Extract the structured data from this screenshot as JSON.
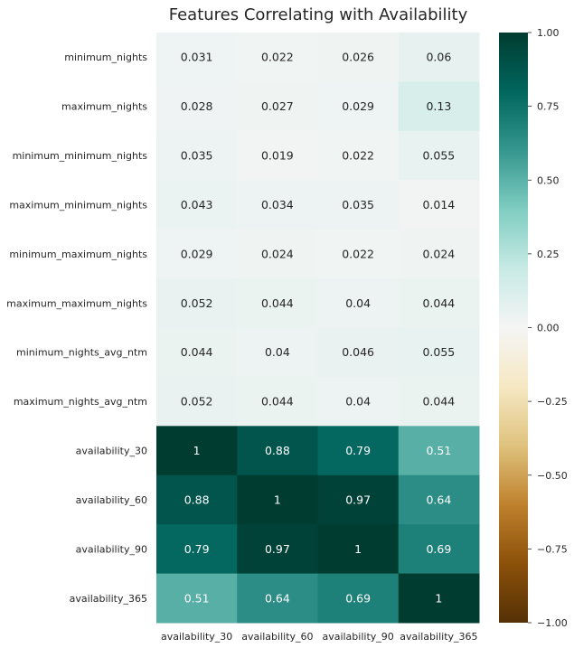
{
  "chart_data": {
    "type": "heatmap",
    "title": "Features Correlating with Availability",
    "rows": [
      "minimum_nights",
      "maximum_nights",
      "minimum_minimum_nights",
      "maximum_minimum_nights",
      "minimum_maximum_nights",
      "maximum_maximum_nights",
      "minimum_nights_avg_ntm",
      "maximum_nights_avg_ntm",
      "availability_30",
      "availability_60",
      "availability_90",
      "availability_365"
    ],
    "columns": [
      "availability_30",
      "availability_60",
      "availability_90",
      "availability_365"
    ],
    "values": [
      [
        0.031,
        0.022,
        0.026,
        0.06
      ],
      [
        0.028,
        0.027,
        0.029,
        0.13
      ],
      [
        0.035,
        0.019,
        0.022,
        0.055
      ],
      [
        0.043,
        0.034,
        0.035,
        0.014
      ],
      [
        0.029,
        0.024,
        0.022,
        0.024
      ],
      [
        0.052,
        0.044,
        0.04,
        0.044
      ],
      [
        0.044,
        0.04,
        0.046,
        0.055
      ],
      [
        0.052,
        0.044,
        0.04,
        0.044
      ],
      [
        1,
        0.88,
        0.79,
        0.51
      ],
      [
        0.88,
        1,
        0.97,
        0.64
      ],
      [
        0.79,
        0.97,
        1,
        0.69
      ],
      [
        0.51,
        0.64,
        0.69,
        1
      ]
    ],
    "annotations": [
      [
        "0.031",
        "0.022",
        "0.026",
        "0.06"
      ],
      [
        "0.028",
        "0.027",
        "0.029",
        "0.13"
      ],
      [
        "0.035",
        "0.019",
        "0.022",
        "0.055"
      ],
      [
        "0.043",
        "0.034",
        "0.035",
        "0.014"
      ],
      [
        "0.029",
        "0.024",
        "0.022",
        "0.024"
      ],
      [
        "0.052",
        "0.044",
        "0.04",
        "0.044"
      ],
      [
        "0.044",
        "0.04",
        "0.046",
        "0.055"
      ],
      [
        "0.052",
        "0.044",
        "0.04",
        "0.044"
      ],
      [
        "1",
        "0.88",
        "0.79",
        "0.51"
      ],
      [
        "0.88",
        "1",
        "0.97",
        "0.64"
      ],
      [
        "0.79",
        "0.97",
        "1",
        "0.69"
      ],
      [
        "0.51",
        "0.64",
        "0.69",
        "1"
      ]
    ],
    "colorbar": {
      "colormap": "BrBG",
      "vmin": -1,
      "vmax": 1,
      "ticks": [
        1.0,
        0.75,
        0.5,
        0.25,
        0.0,
        -0.25,
        -0.5,
        -0.75,
        -1.0
      ],
      "tick_labels": [
        "1.00",
        "0.75",
        "0.50",
        "0.25",
        "0.00",
        "−0.25",
        "−0.50",
        "−0.75",
        "−1.00"
      ],
      "stops": [
        {
          "value": -1.0,
          "color": "#543005"
        },
        {
          "value": -0.8,
          "color": "#8c510a"
        },
        {
          "value": -0.6,
          "color": "#bf812d"
        },
        {
          "value": -0.4,
          "color": "#dfc27d"
        },
        {
          "value": -0.2,
          "color": "#f6e8c3"
        },
        {
          "value": 0.0,
          "color": "#f5f5f5"
        },
        {
          "value": 0.2,
          "color": "#c7eae5"
        },
        {
          "value": 0.4,
          "color": "#80cdc1"
        },
        {
          "value": 0.6,
          "color": "#35978f"
        },
        {
          "value": 0.8,
          "color": "#01665e"
        },
        {
          "value": 1.0,
          "color": "#003c30"
        }
      ]
    },
    "text_colors": {
      "dark": "#262626",
      "light": "#ffffff"
    }
  }
}
